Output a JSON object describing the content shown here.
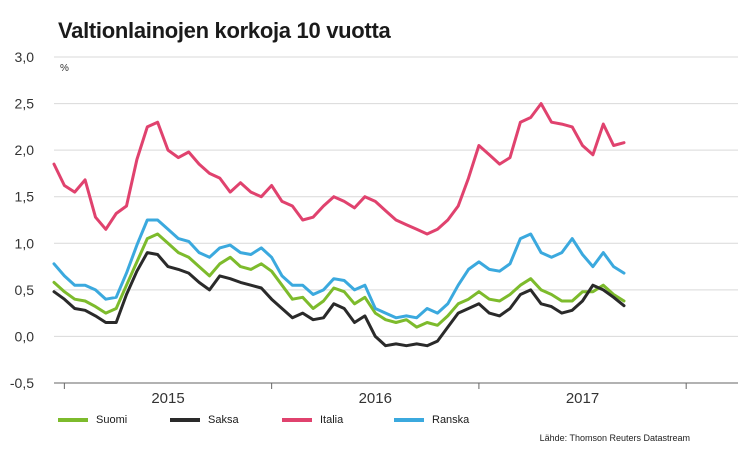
{
  "title": "Valtionlainojen korkoja 10 vuotta",
  "source": "Lähde: Thomson Reuters Datastream",
  "chart_data": {
    "type": "line",
    "title": "Valtionlainojen korkoja 10 vuotta",
    "ylabel": "%",
    "ylim": [
      -0.5,
      3.0
    ],
    "yticks": [
      "3,0",
      "2,5",
      "2,0",
      "1,5",
      "1,0",
      "0,5",
      "0,0",
      "-0,5"
    ],
    "xlim": [
      2014.45,
      2017.75
    ],
    "xticks": [
      {
        "label": "2015",
        "value": 2015.0
      },
      {
        "label": "2016",
        "value": 2016.0
      },
      {
        "label": "2017",
        "value": 2017.0
      }
    ],
    "grid": true,
    "legend": "bottom",
    "x": [
      2014.45,
      2014.5,
      2014.55,
      2014.6,
      2014.65,
      2014.7,
      2014.75,
      2014.8,
      2014.85,
      2014.9,
      2014.95,
      2015.0,
      2015.05,
      2015.1,
      2015.15,
      2015.2,
      2015.25,
      2015.3,
      2015.35,
      2015.4,
      2015.45,
      2015.5,
      2015.55,
      2015.6,
      2015.65,
      2015.7,
      2015.75,
      2015.8,
      2015.85,
      2015.9,
      2015.95,
      2016.0,
      2016.05,
      2016.1,
      2016.15,
      2016.2,
      2016.25,
      2016.3,
      2016.35,
      2016.4,
      2016.45,
      2016.5,
      2016.55,
      2016.6,
      2016.65,
      2016.7,
      2016.75,
      2016.8,
      2016.85,
      2016.9,
      2016.95,
      2017.0,
      2017.05,
      2017.1,
      2017.15,
      2017.2
    ],
    "series": [
      {
        "name": "Suomi",
        "color": "#7dbb2c",
        "values": [
          0.58,
          0.48,
          0.4,
          0.38,
          0.32,
          0.25,
          0.3,
          0.55,
          0.8,
          1.05,
          1.1,
          1.0,
          0.9,
          0.85,
          0.75,
          0.65,
          0.78,
          0.85,
          0.75,
          0.72,
          0.78,
          0.7,
          0.55,
          0.4,
          0.42,
          0.3,
          0.38,
          0.52,
          0.48,
          0.35,
          0.42,
          0.25,
          0.18,
          0.15,
          0.18,
          0.1,
          0.15,
          0.12,
          0.22,
          0.35,
          0.4,
          0.48,
          0.4,
          0.38,
          0.45,
          0.55,
          0.62,
          0.5,
          0.45,
          0.38,
          0.38,
          0.48,
          0.48,
          0.55,
          0.45,
          0.38
        ]
      },
      {
        "name": "Saksa",
        "color": "#2a2a2a",
        "values": [
          0.48,
          0.4,
          0.3,
          0.28,
          0.22,
          0.15,
          0.15,
          0.45,
          0.7,
          0.9,
          0.88,
          0.75,
          0.72,
          0.68,
          0.58,
          0.5,
          0.65,
          0.62,
          0.58,
          0.55,
          0.52,
          0.4,
          0.3,
          0.2,
          0.25,
          0.18,
          0.2,
          0.35,
          0.3,
          0.15,
          0.22,
          0.0,
          -0.1,
          -0.08,
          -0.1,
          -0.08,
          -0.1,
          -0.05,
          0.1,
          0.25,
          0.3,
          0.35,
          0.25,
          0.22,
          0.3,
          0.45,
          0.5,
          0.35,
          0.32,
          0.25,
          0.28,
          0.38,
          0.55,
          0.5,
          0.42,
          0.33
        ]
      },
      {
        "name": "Italia",
        "color": "#e0426e",
        "values": [
          1.85,
          1.62,
          1.55,
          1.68,
          1.28,
          1.15,
          1.32,
          1.4,
          1.9,
          2.25,
          2.3,
          2.0,
          1.92,
          1.98,
          1.85,
          1.75,
          1.7,
          1.55,
          1.65,
          1.55,
          1.5,
          1.62,
          1.45,
          1.4,
          1.25,
          1.28,
          1.4,
          1.5,
          1.45,
          1.38,
          1.5,
          1.45,
          1.35,
          1.25,
          1.2,
          1.15,
          1.1,
          1.15,
          1.25,
          1.4,
          1.7,
          2.05,
          1.95,
          1.85,
          1.92,
          2.3,
          2.35,
          2.5,
          2.3,
          2.28,
          2.25,
          2.05,
          1.95,
          2.28,
          2.05,
          2.08
        ]
      },
      {
        "name": "Ranska",
        "color": "#3ba9de",
        "values": [
          0.78,
          0.65,
          0.55,
          0.55,
          0.5,
          0.4,
          0.42,
          0.68,
          0.98,
          1.25,
          1.25,
          1.15,
          1.05,
          1.02,
          0.9,
          0.85,
          0.95,
          0.98,
          0.9,
          0.88,
          0.95,
          0.85,
          0.65,
          0.55,
          0.55,
          0.45,
          0.5,
          0.62,
          0.6,
          0.5,
          0.55,
          0.3,
          0.25,
          0.2,
          0.22,
          0.2,
          0.3,
          0.25,
          0.35,
          0.55,
          0.72,
          0.8,
          0.72,
          0.7,
          0.78,
          1.05,
          1.1,
          0.9,
          0.85,
          0.9,
          1.05,
          0.88,
          0.75,
          0.9,
          0.75,
          0.68
        ]
      }
    ]
  }
}
